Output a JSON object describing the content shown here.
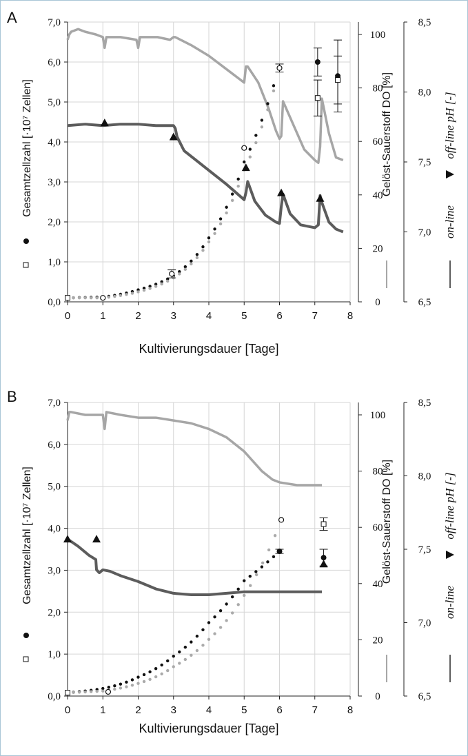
{
  "chart_data": [
    {
      "panel_label": "A",
      "type": "line",
      "xlabel": "Kultivierungsdauer [Tage]",
      "xlim": [
        0,
        8
      ],
      "x_ticks": [
        "0",
        "1",
        "2",
        "3",
        "4",
        "5",
        "6",
        "7",
        "8"
      ],
      "y_left": {
        "label": "Gesamtzellzahl [·10⁷ Zellen]",
        "lim": [
          0,
          7
        ],
        "ticks": [
          "0,0",
          "1,0",
          "2,0",
          "3,0",
          "4,0",
          "5,0",
          "6,0",
          "7,0"
        ]
      },
      "y_do": {
        "label": "Gelöst-Sauerstoff DO [%]",
        "lim": [
          0,
          105
        ],
        "ticks": [
          "0",
          "20",
          "40",
          "60",
          "80",
          "100"
        ]
      },
      "y_ph": {
        "label_online": "on-line",
        "label_offline": "off-line pH [-]",
        "lim": [
          6.5,
          8.5
        ],
        "ticks": [
          "6,5",
          "7,0",
          "7,5",
          "8,0",
          "8,5"
        ]
      },
      "series": [
        {
          "name": "DO",
          "axis": "do",
          "color": "#a6a6a6",
          "x": [
            0,
            0.05,
            0.1,
            0.3,
            0.5,
            0.8,
            1.0,
            1.05,
            1.1,
            1.5,
            1.95,
            2.0,
            2.05,
            2.3,
            2.55,
            2.9,
            3.0,
            3.05,
            3.5,
            4.0,
            4.5,
            5.0,
            5.05,
            5.1,
            5.4,
            5.7,
            5.9,
            6.0,
            6.05,
            6.1,
            6.4,
            6.7,
            7.0,
            7.1,
            7.15,
            7.2,
            7.4,
            7.6,
            7.8
          ],
          "y": [
            98,
            100,
            101,
            102,
            101,
            100,
            99,
            95,
            99,
            99,
            98,
            95,
            99,
            99,
            99,
            98,
            99,
            99,
            96,
            92,
            87,
            82,
            88,
            88,
            82,
            72,
            64,
            61,
            62,
            75,
            66,
            57,
            53,
            52,
            58,
            76,
            63,
            54,
            53
          ]
        },
        {
          "name": "pH on-line",
          "axis": "ph",
          "color": "#5c5c5c",
          "x": [
            0,
            0.5,
            1.0,
            1.5,
            2.0,
            2.5,
            3.0,
            3.05,
            3.1,
            3.3,
            3.6,
            4.0,
            4.5,
            5.0,
            5.05,
            5.1,
            5.3,
            5.6,
            5.9,
            6.0,
            6.05,
            6.1,
            6.3,
            6.6,
            7.0,
            7.1,
            7.15,
            7.2,
            7.4,
            7.6,
            7.8
          ],
          "y": [
            7.76,
            7.77,
            7.76,
            7.77,
            7.77,
            7.76,
            7.76,
            7.74,
            7.68,
            7.58,
            7.52,
            7.44,
            7.34,
            7.23,
            7.28,
            7.36,
            7.22,
            7.12,
            7.07,
            7.06,
            7.18,
            7.27,
            7.13,
            7.05,
            7.03,
            7.05,
            7.26,
            7.21,
            7.07,
            7.02,
            7.0
          ]
        },
        {
          "name": "Gesamtzellzahl ●",
          "axis": "left",
          "color": "#111111",
          "x": [
            0,
            1,
            2,
            3,
            4,
            5,
            6
          ],
          "y": [
            0.1,
            0.12,
            0.3,
            0.65,
            1.6,
            3.5,
            5.9
          ]
        },
        {
          "name": "Gesamtzellzahl ○",
          "axis": "left",
          "color": "#aaaaaa",
          "x": [
            0,
            1,
            2,
            3,
            4,
            5,
            6
          ],
          "y": [
            0.1,
            0.1,
            0.25,
            0.6,
            1.5,
            3.3,
            5.8
          ]
        }
      ],
      "markers": {
        "filled_circle": [
          {
            "x": 7.08,
            "y": 6.0,
            "err": 0.35
          },
          {
            "x": 7.65,
            "y": 5.65,
            "err": 0.9
          }
        ],
        "open_square": [
          {
            "x": 7.08,
            "y": 5.1,
            "err": 0.45
          },
          {
            "x": 7.65,
            "y": 5.55,
            "err": 0.6
          },
          {
            "x": 0,
            "y": 0.1,
            "err": 0
          }
        ],
        "open_circle": [
          {
            "x": 1.0,
            "y": 0.1,
            "err": 0
          },
          {
            "x": 2.95,
            "y": 0.7,
            "err": 0.1
          },
          {
            "x": 5.0,
            "y": 3.85,
            "err": 0
          },
          {
            "x": 6.0,
            "y": 5.85,
            "err": 0.1
          }
        ],
        "triangle_ph": [
          {
            "x": 1.05,
            "y": 7.78
          },
          {
            "x": 3.0,
            "y": 7.68
          },
          {
            "x": 5.05,
            "y": 7.46
          },
          {
            "x": 6.05,
            "y": 7.28
          },
          {
            "x": 7.15,
            "y": 7.24
          }
        ]
      }
    },
    {
      "panel_label": "B",
      "type": "line",
      "xlabel": "Kultivierungsdauer [Tage]",
      "xlim": [
        0,
        8
      ],
      "x_ticks": [
        "0",
        "1",
        "2",
        "3",
        "4",
        "5",
        "6",
        "7",
        "8"
      ],
      "y_left": {
        "label": "Gesamtzellzahl [·10⁷ Zellen]",
        "lim": [
          0,
          7
        ],
        "ticks": [
          "0,0",
          "1,0",
          "2,0",
          "3,0",
          "4,0",
          "5,0",
          "6,0",
          "7,0"
        ]
      },
      "y_do": {
        "label": "Gelöst-Sauerstoff DO [%]",
        "lim": [
          0,
          105
        ],
        "ticks": [
          "0",
          "20",
          "40",
          "60",
          "80",
          "100"
        ]
      },
      "y_ph": {
        "label_online": "on-line",
        "label_offline": "off-line pH [-]",
        "lim": [
          6.5,
          8.5
        ],
        "ticks": [
          "6,5",
          "7,0",
          "7,5",
          "8,0",
          "8,5"
        ]
      },
      "series": [
        {
          "name": "DO",
          "axis": "do",
          "color": "#a6a6a6",
          "x": [
            0,
            0.05,
            0.1,
            0.5,
            1.0,
            1.05,
            1.1,
            1.5,
            2.0,
            2.5,
            3.0,
            3.5,
            4.0,
            4.5,
            5.0,
            5.5,
            5.8,
            6.0,
            6.5,
            7.0,
            7.2
          ],
          "y": [
            98,
            101,
            101,
            100,
            100,
            95,
            101,
            100,
            99,
            99,
            98,
            97,
            95,
            92,
            87,
            80,
            77,
            76,
            75,
            75,
            75
          ]
        },
        {
          "name": "pH on-line",
          "axis": "ph",
          "color": "#5c5c5c",
          "x": [
            0,
            0.3,
            0.6,
            0.8,
            0.82,
            0.9,
            1.0,
            1.2,
            1.5,
            2.0,
            2.5,
            3.0,
            3.5,
            4.0,
            4.5,
            5.0,
            5.5,
            6.0,
            6.5,
            7.0,
            7.2
          ],
          "y": [
            7.57,
            7.52,
            7.46,
            7.43,
            7.36,
            7.34,
            7.36,
            7.35,
            7.32,
            7.28,
            7.23,
            7.2,
            7.19,
            7.19,
            7.2,
            7.21,
            7.21,
            7.21,
            7.21,
            7.21,
            7.21
          ]
        },
        {
          "name": "Gesamtzellzahl ●",
          "axis": "left",
          "color": "#111111",
          "x": [
            0,
            1,
            2,
            3,
            4,
            5,
            6
          ],
          "y": [
            0.08,
            0.18,
            0.45,
            0.95,
            1.75,
            2.75,
            3.45
          ]
        },
        {
          "name": "Gesamtzellzahl ○",
          "axis": "left",
          "color": "#aaaaaa",
          "x": [
            0,
            1,
            2,
            3,
            4,
            5,
            6.05
          ],
          "y": [
            0.08,
            0.12,
            0.3,
            0.7,
            1.35,
            2.4,
            4.2
          ]
        }
      ],
      "markers": {
        "filled_circle": [
          {
            "x": 6.0,
            "y": 3.45,
            "err": 0.05
          },
          {
            "x": 7.25,
            "y": 3.3,
            "err": 0.2
          }
        ],
        "open_square": [
          {
            "x": 7.25,
            "y": 4.1,
            "err": 0.15
          },
          {
            "x": 0,
            "y": 0.08,
            "err": 0
          }
        ],
        "open_circle": [
          {
            "x": 1.15,
            "y": 0.1,
            "err": 0
          },
          {
            "x": 6.05,
            "y": 4.2,
            "err": 0
          }
        ],
        "triangle_ph": [
          {
            "x": 0,
            "y": 7.57
          },
          {
            "x": 0.82,
            "y": 7.57
          },
          {
            "x": 7.25,
            "y": 7.4
          }
        ]
      }
    }
  ]
}
